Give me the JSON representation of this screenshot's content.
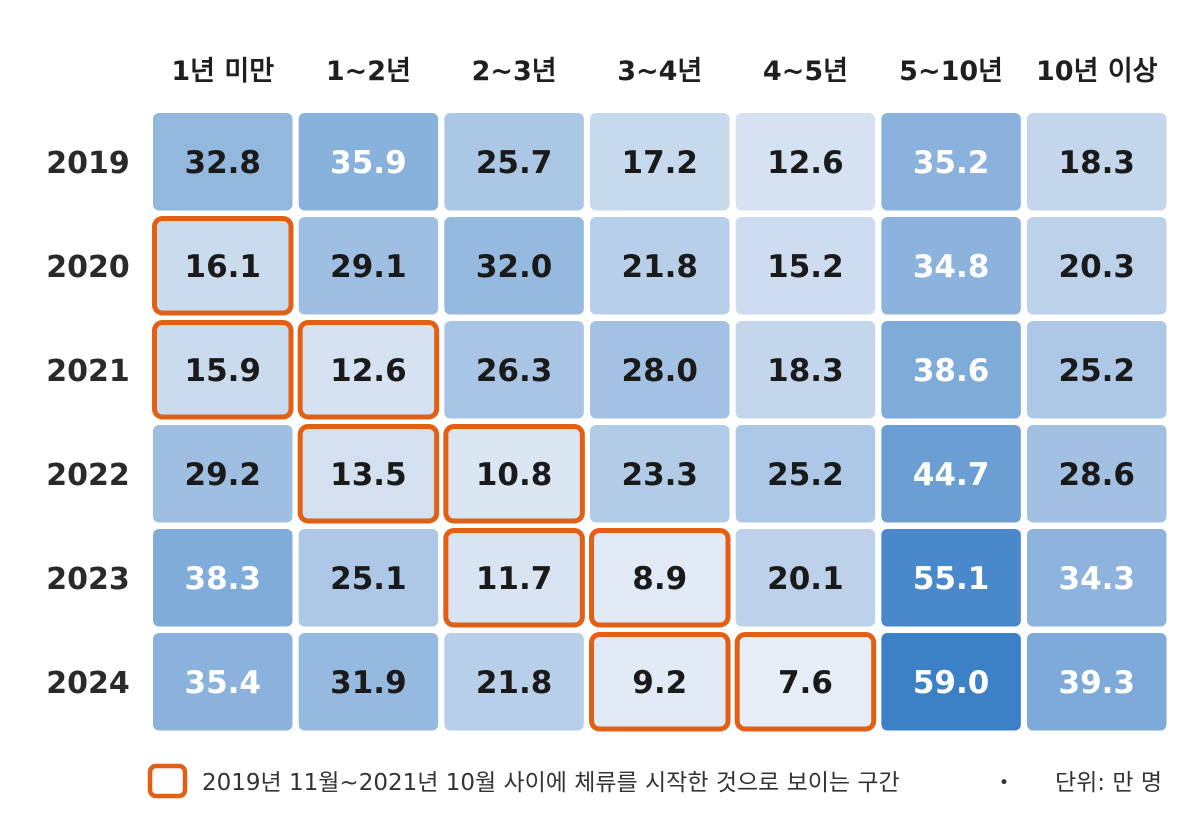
{
  "chart_data": {
    "type": "heatmap",
    "columns": [
      "1년 미만",
      "1~2년",
      "2~3년",
      "3~4년",
      "4~5년",
      "5~10년",
      "10년 이상"
    ],
    "rows": [
      "2019",
      "2020",
      "2021",
      "2022",
      "2023",
      "2024"
    ],
    "values": [
      [
        "32.8",
        "35.9",
        "25.7",
        "17.2",
        "12.6",
        "35.2",
        "18.3"
      ],
      [
        "16.1",
        "29.1",
        "32.0",
        "21.8",
        "15.2",
        "34.8",
        "20.3"
      ],
      [
        "15.9",
        "12.6",
        "26.3",
        "28.0",
        "18.3",
        "38.6",
        "25.2"
      ],
      [
        "29.2",
        "13.5",
        "10.8",
        "23.3",
        "25.2",
        "44.7",
        "28.6"
      ],
      [
        "38.3",
        "25.1",
        "11.7",
        "8.9",
        "20.1",
        "55.1",
        "34.3"
      ],
      [
        "35.4",
        "31.9",
        "21.8",
        "9.2",
        "7.6",
        "59.0",
        "39.3"
      ]
    ],
    "highlighted_cells": [
      [
        1,
        0
      ],
      [
        2,
        0
      ],
      [
        2,
        1
      ],
      [
        3,
        1
      ],
      [
        3,
        2
      ],
      [
        4,
        2
      ],
      [
        4,
        3
      ],
      [
        5,
        3
      ],
      [
        5,
        4
      ]
    ],
    "white_text_threshold": 34,
    "colors": {
      "low": "#e6edf6",
      "high": "#3c80c6",
      "highlight_border": "#e35f14",
      "dark_text": "#1a1a1a",
      "light_text": "#ffffff"
    },
    "legend": {
      "highlight_label": "2019년 11월~2021년 10월 사이에 체류를 시작한 것으로 보이는 구간",
      "separator": "・",
      "unit_label": "단위: 만 명"
    }
  }
}
